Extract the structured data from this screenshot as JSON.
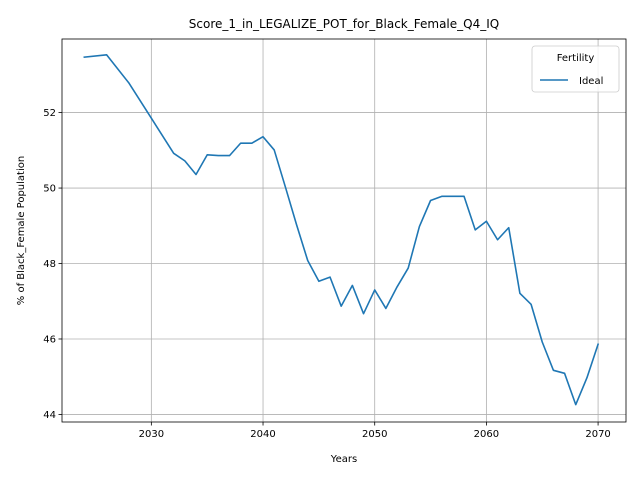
{
  "chart_data": {
    "type": "line",
    "title": "Score_1_in_LEGALIZE_POT_for_Black_Female_Q4_IQ",
    "xlabel": "Years",
    "ylabel": "% of Black_Female Population",
    "xlim": [
      2022,
      2072.5
    ],
    "ylim": [
      43.8,
      53.95
    ],
    "xticks": [
      2030,
      2040,
      2050,
      2060,
      2070
    ],
    "yticks": [
      44,
      46,
      48,
      50,
      52
    ],
    "grid": true,
    "legend": {
      "title": "Fertility",
      "position": "top-right"
    },
    "series": [
      {
        "name": "Ideal",
        "color": "#1f77b4",
        "x": [
          2024,
          2026,
          2028,
          2030,
          2032,
          2033,
          2034,
          2035,
          2036,
          2037,
          2038,
          2039,
          2040,
          2041,
          2042,
          2043,
          2044,
          2045,
          2046,
          2047,
          2048,
          2049,
          2050,
          2051,
          2052,
          2053,
          2054,
          2055,
          2056,
          2057,
          2058,
          2059,
          2060,
          2061,
          2062,
          2063,
          2064,
          2065,
          2066,
          2067,
          2068,
          2069,
          2070
        ],
        "y": [
          53.47,
          53.53,
          52.78,
          51.85,
          50.92,
          50.72,
          50.36,
          50.88,
          50.86,
          50.86,
          51.19,
          51.19,
          51.36,
          51.01,
          50.03,
          49.03,
          48.08,
          47.53,
          47.64,
          46.87,
          47.42,
          46.67,
          47.3,
          46.81,
          47.38,
          47.88,
          48.98,
          49.67,
          49.78,
          49.78,
          49.78,
          48.89,
          49.12,
          48.63,
          48.95,
          47.21,
          46.92,
          45.92,
          45.17,
          45.09,
          44.26,
          44.97,
          45.86
        ]
      }
    ]
  }
}
